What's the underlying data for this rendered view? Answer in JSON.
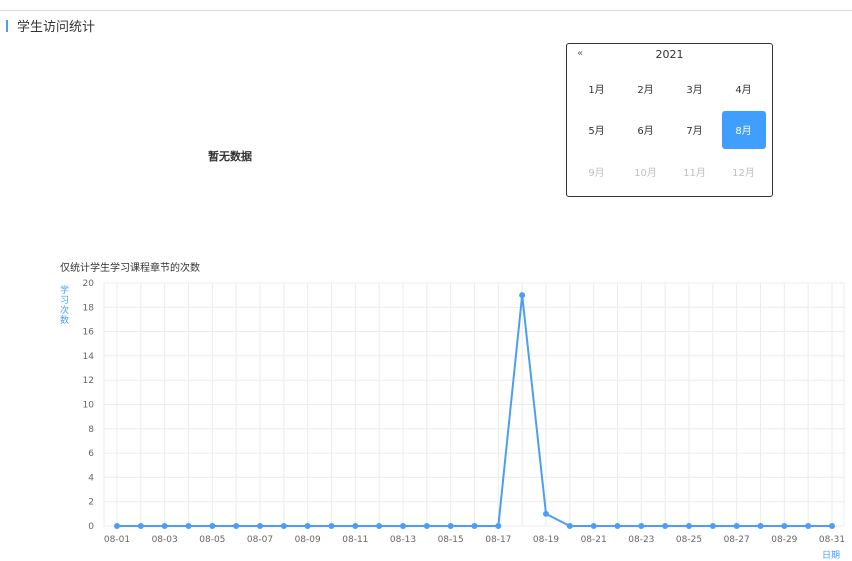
{
  "header": {
    "title": "学生访问统计"
  },
  "empty_state": {
    "text": "暂无数据"
  },
  "calendar": {
    "prev_label": "«",
    "year": "2021",
    "months": [
      "1月",
      "2月",
      "3月",
      "4月",
      "5月",
      "6月",
      "7月",
      "8月",
      "9月",
      "10月",
      "11月",
      "12月"
    ],
    "selected_index": 7,
    "disabled_from_index": 8
  },
  "colors": {
    "accent": "#4a9ff5",
    "selected": "#409eff"
  },
  "chart_data": {
    "type": "line",
    "title": "",
    "subtitle": "仅统计学生学习课程章节的次数",
    "xlabel": "日期",
    "ylabel": "学习次数",
    "ylim": [
      0,
      20
    ],
    "yticks": [
      0,
      2,
      4,
      6,
      8,
      10,
      12,
      14,
      16,
      18,
      20
    ],
    "grid": true,
    "x": [
      "08-01",
      "08-02",
      "08-03",
      "08-04",
      "08-05",
      "08-06",
      "08-07",
      "08-08",
      "08-09",
      "08-10",
      "08-11",
      "08-12",
      "08-13",
      "08-14",
      "08-15",
      "08-16",
      "08-17",
      "08-18",
      "08-19",
      "08-20",
      "08-21",
      "08-22",
      "08-23",
      "08-24",
      "08-25",
      "08-26",
      "08-27",
      "08-28",
      "08-29",
      "08-30",
      "08-31"
    ],
    "x_tick_labels": [
      "08-01",
      "08-03",
      "08-05",
      "08-07",
      "08-09",
      "08-11",
      "08-13",
      "08-15",
      "08-17",
      "08-19",
      "08-21",
      "08-23",
      "08-25",
      "08-27",
      "08-29",
      "08-31"
    ],
    "series": [
      {
        "values": [
          0,
          0,
          0,
          0,
          0,
          0,
          0,
          0,
          0,
          0,
          0,
          0,
          0,
          0,
          0,
          0,
          0,
          19,
          1,
          0,
          0,
          0,
          0,
          0,
          0,
          0,
          0,
          0,
          0,
          0,
          0
        ]
      }
    ]
  }
}
